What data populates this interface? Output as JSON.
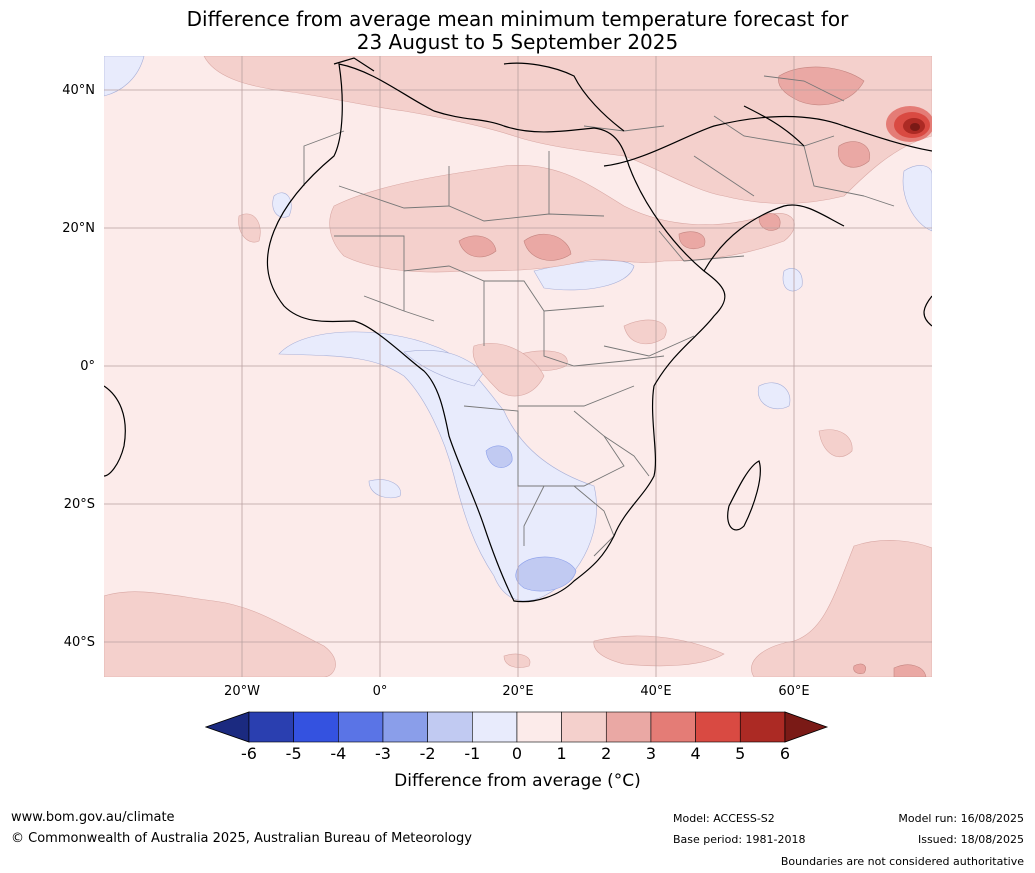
{
  "title": {
    "line1": "Difference from average mean minimum temperature forecast for",
    "line2": "23 August to 5 September 2025"
  },
  "map": {
    "lat_labels": [
      "40°N",
      "20°N",
      "0°",
      "20°S",
      "40°S"
    ],
    "lon_labels": [
      "20°W",
      "0°",
      "20°E",
      "40°E",
      "60°E"
    ]
  },
  "legend": {
    "ticks": [
      "-6",
      "-5",
      "-4",
      "-3",
      "-2",
      "-1",
      "0",
      "1",
      "2",
      "3",
      "4",
      "5",
      "6"
    ],
    "colors": [
      "#1b2a80",
      "#2a3fb0",
      "#3452e0",
      "#5a74e6",
      "#8a9eea",
      "#c1caf2",
      "#e8ebfc",
      "#fcebea",
      "#f4d0cc",
      "#eaa8a4",
      "#e47c76",
      "#d94a42",
      "#ac2a24",
      "#7a1a16"
    ],
    "label": "Difference from average (°C)"
  },
  "footer": {
    "website": "www.bom.gov.au/climate",
    "copyright": "© Commonwealth of Australia 2025, Australian Bureau of Meteorology",
    "model": "Model: ACCESS-S2",
    "base_period": "Base period: 1981-2018",
    "model_run": "Model run: 16/08/2025",
    "issued": "Issued: 18/08/2025",
    "disclaimer": "Boundaries are not considered authoritative"
  }
}
